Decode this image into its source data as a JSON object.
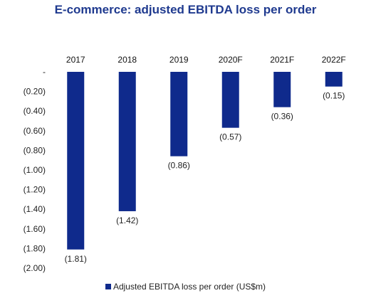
{
  "chart_data": {
    "type": "bar",
    "title": "E-commerce: adjusted EBITDA loss per order",
    "categories": [
      "2017",
      "2018",
      "2019",
      "2020F",
      "2021F",
      "2022F"
    ],
    "series": [
      {
        "name": "Adjusted EBITDA loss per order (US$m)",
        "values": [
          -1.81,
          -1.42,
          -0.86,
          -0.57,
          -0.36,
          -0.15
        ],
        "labels": [
          "(1.81)",
          "(1.42)",
          "(0.86)",
          "(0.57)",
          "(0.36)",
          "(0.15)"
        ]
      }
    ],
    "ylim": [
      -2.0,
      0
    ],
    "y_ticks": [
      0,
      -0.2,
      -0.4,
      -0.6,
      -0.8,
      -1.0,
      -1.2,
      -1.4,
      -1.6,
      -1.8,
      -2.0
    ],
    "y_tick_labels": [
      "-",
      "(0.20)",
      "(0.40)",
      "(0.60)",
      "(0.80)",
      "(1.00)",
      "(1.20)",
      "(1.40)",
      "(1.60)",
      "(1.80)",
      "(2.00)"
    ],
    "category_axis_position": "top",
    "grid": false,
    "legend": "bottom",
    "bar_color": "#0f2a8c"
  }
}
